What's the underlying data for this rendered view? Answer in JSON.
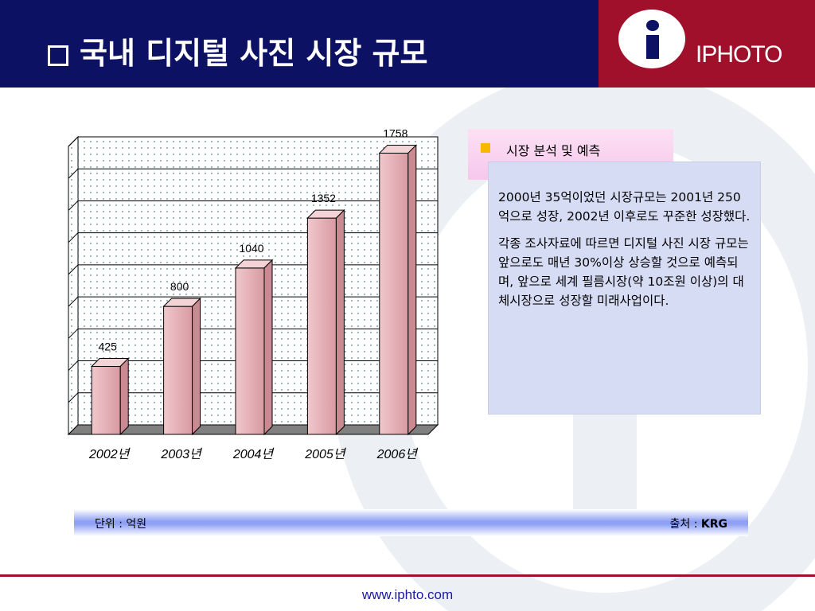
{
  "slide": {
    "title": "국내 디지털 사진 시장 규모",
    "brand": "IPHOTO",
    "logo_letter": "i",
    "website": "www.iphto.com"
  },
  "side_box": {
    "heading": "시장 분석 및 예측",
    "paragraphs": [
      "2000년 35억이었던 시장규모는 2001년 250억으로 성장, 2002년 이후로도 꾸준한 성장했다.",
      "각종 조사자료에 따르면 디지털 사진 시장 규모는 앞으로도 매년 30%이상 상승할 것으로 예측되며, 앞으로 세계 필름시장(약 10조원 이상)의 대체시장으로 성장할 미래사업이다."
    ]
  },
  "footer_strip": {
    "unit_label": "단위 :",
    "unit_value": "억원",
    "source_label": "출처 :",
    "source_value": "KRG"
  },
  "colors": {
    "header_navy": "#0c1163",
    "header_maroon": "#a0102a",
    "bar_fill": "#e8b4ba",
    "info_box": "#d7dcf5"
  },
  "chart_data": {
    "type": "bar",
    "categories": [
      "2002년",
      "2003년",
      "2004년",
      "2005년",
      "2006년"
    ],
    "values": [
      425,
      800,
      1040,
      1352,
      1758
    ],
    "data_labels": [
      "425",
      "800",
      "1040",
      "1352",
      "1758"
    ],
    "ylim": [
      0,
      1800
    ],
    "grid": true,
    "title": "",
    "xlabel": "",
    "ylabel": ""
  }
}
